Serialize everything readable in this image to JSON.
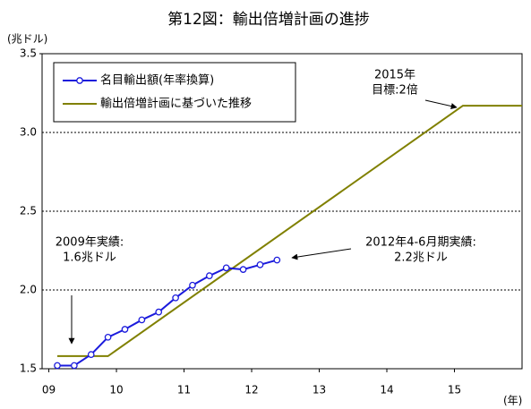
{
  "chart_data": {
    "type": "line",
    "title": "第12図：輸出倍増計画の進捗",
    "y_label": "(兆ドル)",
    "x_label": "(年)",
    "xlim": [
      2008.9,
      2016
    ],
    "xticks": [
      {
        "value": 2009,
        "label": "09"
      },
      {
        "value": 2010,
        "label": "10"
      },
      {
        "value": 2011,
        "label": "11"
      },
      {
        "value": 2012,
        "label": "12"
      },
      {
        "value": 2013,
        "label": "13"
      },
      {
        "value": 2014,
        "label": "14"
      },
      {
        "value": 2015,
        "label": "15"
      }
    ],
    "ylim": [
      1.5,
      3.5
    ],
    "yticks": [
      1.5,
      {
        "value": 2.0,
        "label": "2.0"
      },
      2.5,
      {
        "value": 3.0,
        "label": "3.0"
      },
      3.5
    ],
    "grid": true,
    "legend": "upper left",
    "series": [
      {
        "name": "名目輸出額(年率換算)",
        "color": "#1a1adc",
        "marker": "circle",
        "x": [
          2009.125,
          2009.375,
          2009.625,
          2009.875,
          2010.125,
          2010.375,
          2010.625,
          2010.875,
          2011.125,
          2011.375,
          2011.625,
          2011.875,
          2012.125,
          2012.375
        ],
        "values": [
          1.52,
          1.52,
          1.59,
          1.7,
          1.75,
          1.81,
          1.86,
          1.95,
          2.03,
          2.09,
          2.14,
          2.13,
          2.16,
          2.19
        ]
      },
      {
        "name": "輸出倍増計画に基づいた推移",
        "color": "#808000",
        "marker": "none",
        "x": [
          2009.125,
          2009.875,
          2015.125,
          2016
        ],
        "values": [
          1.58,
          1.58,
          3.17,
          3.17
        ]
      }
    ],
    "annotations": [
      {
        "lines": [
          "2009年実績:",
          "1.6兆ドル"
        ]
      },
      {
        "lines": [
          "2012年4-6月期実績:",
          "2.2兆ドル"
        ]
      },
      {
        "lines": [
          "2015年",
          "目標:2倍"
        ]
      }
    ]
  }
}
